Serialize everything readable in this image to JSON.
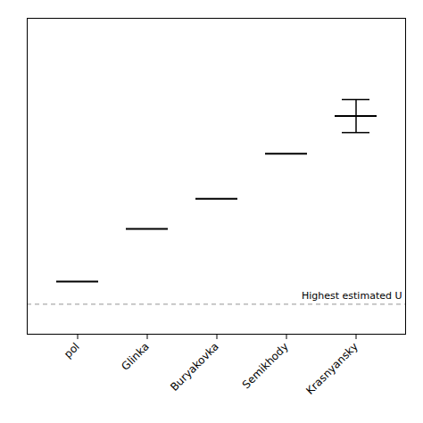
{
  "chart_data": {
    "type": "scatter",
    "marker": "hline",
    "categories": [
      "pol",
      "Glinka",
      "Buryakovka",
      "Semikhody",
      "Krasnyansky"
    ],
    "values": [
      -3.5,
      -2.8,
      -2.4,
      -1.8,
      -1.3
    ],
    "errors": [
      null,
      null,
      null,
      null,
      0.22
    ],
    "color": "#000000",
    "reference_line": {
      "y": -3.8,
      "label": "Highest estimated U",
      "color": "#aaaaaa",
      "line_style": "dashed"
    },
    "ylim": [
      -4.2,
      0.0
    ],
    "yticks": [],
    "grid": false,
    "tick_labels": "x"
  }
}
